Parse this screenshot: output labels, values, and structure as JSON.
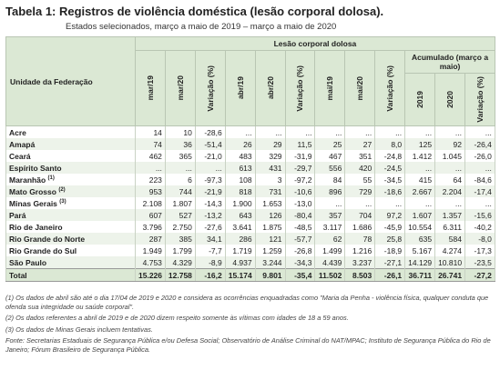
{
  "header": {
    "title": "Tabela 1: Registros de violência doméstica (lesão corporal dolosa).",
    "subtitle": "Estados selecionados, março a maio de 2019 – março a maio de 2020"
  },
  "table": {
    "row_header": "Unidade da Federação",
    "group": "Lesão corporal dolosa",
    "columns": [
      "mar/19",
      "mar/20",
      "Variação (%)",
      "abr/19",
      "abr/20",
      "Variação (%)",
      "mai/19",
      "mai/20",
      "Variação (%)"
    ],
    "accumulated": {
      "label": "Acumulado (março a maio)",
      "columns": [
        "2019",
        "2020",
        "Variação (%)"
      ]
    },
    "rows": [
      {
        "state": "Acre",
        "values": [
          "14",
          "10",
          "-28,6",
          "...",
          "...",
          "...",
          "...",
          "...",
          "...",
          "...",
          "...",
          "..."
        ]
      },
      {
        "state": "Amapá",
        "values": [
          "74",
          "36",
          "-51,4",
          "26",
          "29",
          "11,5",
          "25",
          "27",
          "8,0",
          "125",
          "92",
          "-26,4"
        ]
      },
      {
        "state": "Ceará",
        "values": [
          "462",
          "365",
          "-21,0",
          "483",
          "329",
          "-31,9",
          "467",
          "351",
          "-24,8",
          "1.412",
          "1.045",
          "-26,0"
        ]
      },
      {
        "state": "Espírito Santo",
        "values": [
          "...",
          "...",
          "...",
          "613",
          "431",
          "-29,7",
          "556",
          "420",
          "-24,5",
          "...",
          "...",
          "..."
        ]
      },
      {
        "state": "Maranhão",
        "note": "(1)",
        "values": [
          "223",
          "6",
          "-97,3",
          "108",
          "3",
          "-97,2",
          "84",
          "55",
          "-34,5",
          "415",
          "64",
          "-84,6"
        ]
      },
      {
        "state": "Mato Grosso",
        "note": "(2)",
        "values": [
          "953",
          "744",
          "-21,9",
          "818",
          "731",
          "-10,6",
          "896",
          "729",
          "-18,6",
          "2.667",
          "2.204",
          "-17,4"
        ]
      },
      {
        "state": "Minas Gerais",
        "note": "(3)",
        "values": [
          "2.108",
          "1.807",
          "-14,3",
          "1.900",
          "1.653",
          "-13,0",
          "...",
          "...",
          "...",
          "...",
          "...",
          "..."
        ]
      },
      {
        "state": "Pará",
        "values": [
          "607",
          "527",
          "-13,2",
          "643",
          "126",
          "-80,4",
          "357",
          "704",
          "97,2",
          "1.607",
          "1.357",
          "-15,6"
        ]
      },
      {
        "state": "Rio de Janeiro",
        "values": [
          "3.796",
          "2.750",
          "-27,6",
          "3.641",
          "1.875",
          "-48,5",
          "3.117",
          "1.686",
          "-45,9",
          "10.554",
          "6.311",
          "-40,2"
        ]
      },
      {
        "state": "Rio Grande do Norte",
        "values": [
          "287",
          "385",
          "34,1",
          "286",
          "121",
          "-57,7",
          "62",
          "78",
          "25,8",
          "635",
          "584",
          "-8,0"
        ]
      },
      {
        "state": "Rio Grande do Sul",
        "values": [
          "1.949",
          "1.799",
          "-7,7",
          "1.719",
          "1.259",
          "-26,8",
          "1.499",
          "1.216",
          "-18,9",
          "5.167",
          "4.274",
          "-17,3"
        ]
      },
      {
        "state": "São Paulo",
        "values": [
          "4.753",
          "4.329",
          "-8,9",
          "4.937",
          "3.244",
          "-34,3",
          "4.439",
          "3.237",
          "-27,1",
          "14.129",
          "10.810",
          "-23,5"
        ]
      },
      {
        "state": "Total",
        "values": [
          "15.226",
          "12.758",
          "-16,2",
          "15.174",
          "9.801",
          "-35,4",
          "11.502",
          "8.503",
          "-26,1",
          "36.711",
          "26.741",
          "-27,2"
        ]
      }
    ]
  },
  "footnotes": [
    "(1) Os dados de abril são até o dia 17/04 de 2019 e 2020 e considera as ocorrências enquadradas como \"Maria da Penha - violência física, qualquer conduta que ofenda sua integridade ou saúde corporal\".",
    "(2) Os dados referentes a abril de 2019 e de 2020 dizem respeito somente às vítimas com idades de 18 a 59 anos.",
    "(3) Os dados de Minas Gerais incluem tentativas.",
    "Fonte: Secretarias Estaduais de Segurança Pública e/ou Defesa Social; Observatório de Análise Criminal do NAT/MPAC; Instituto de Segurança Pública do Rio de Janeiro; Fórum Brasileiro de Segurança Pública."
  ]
}
